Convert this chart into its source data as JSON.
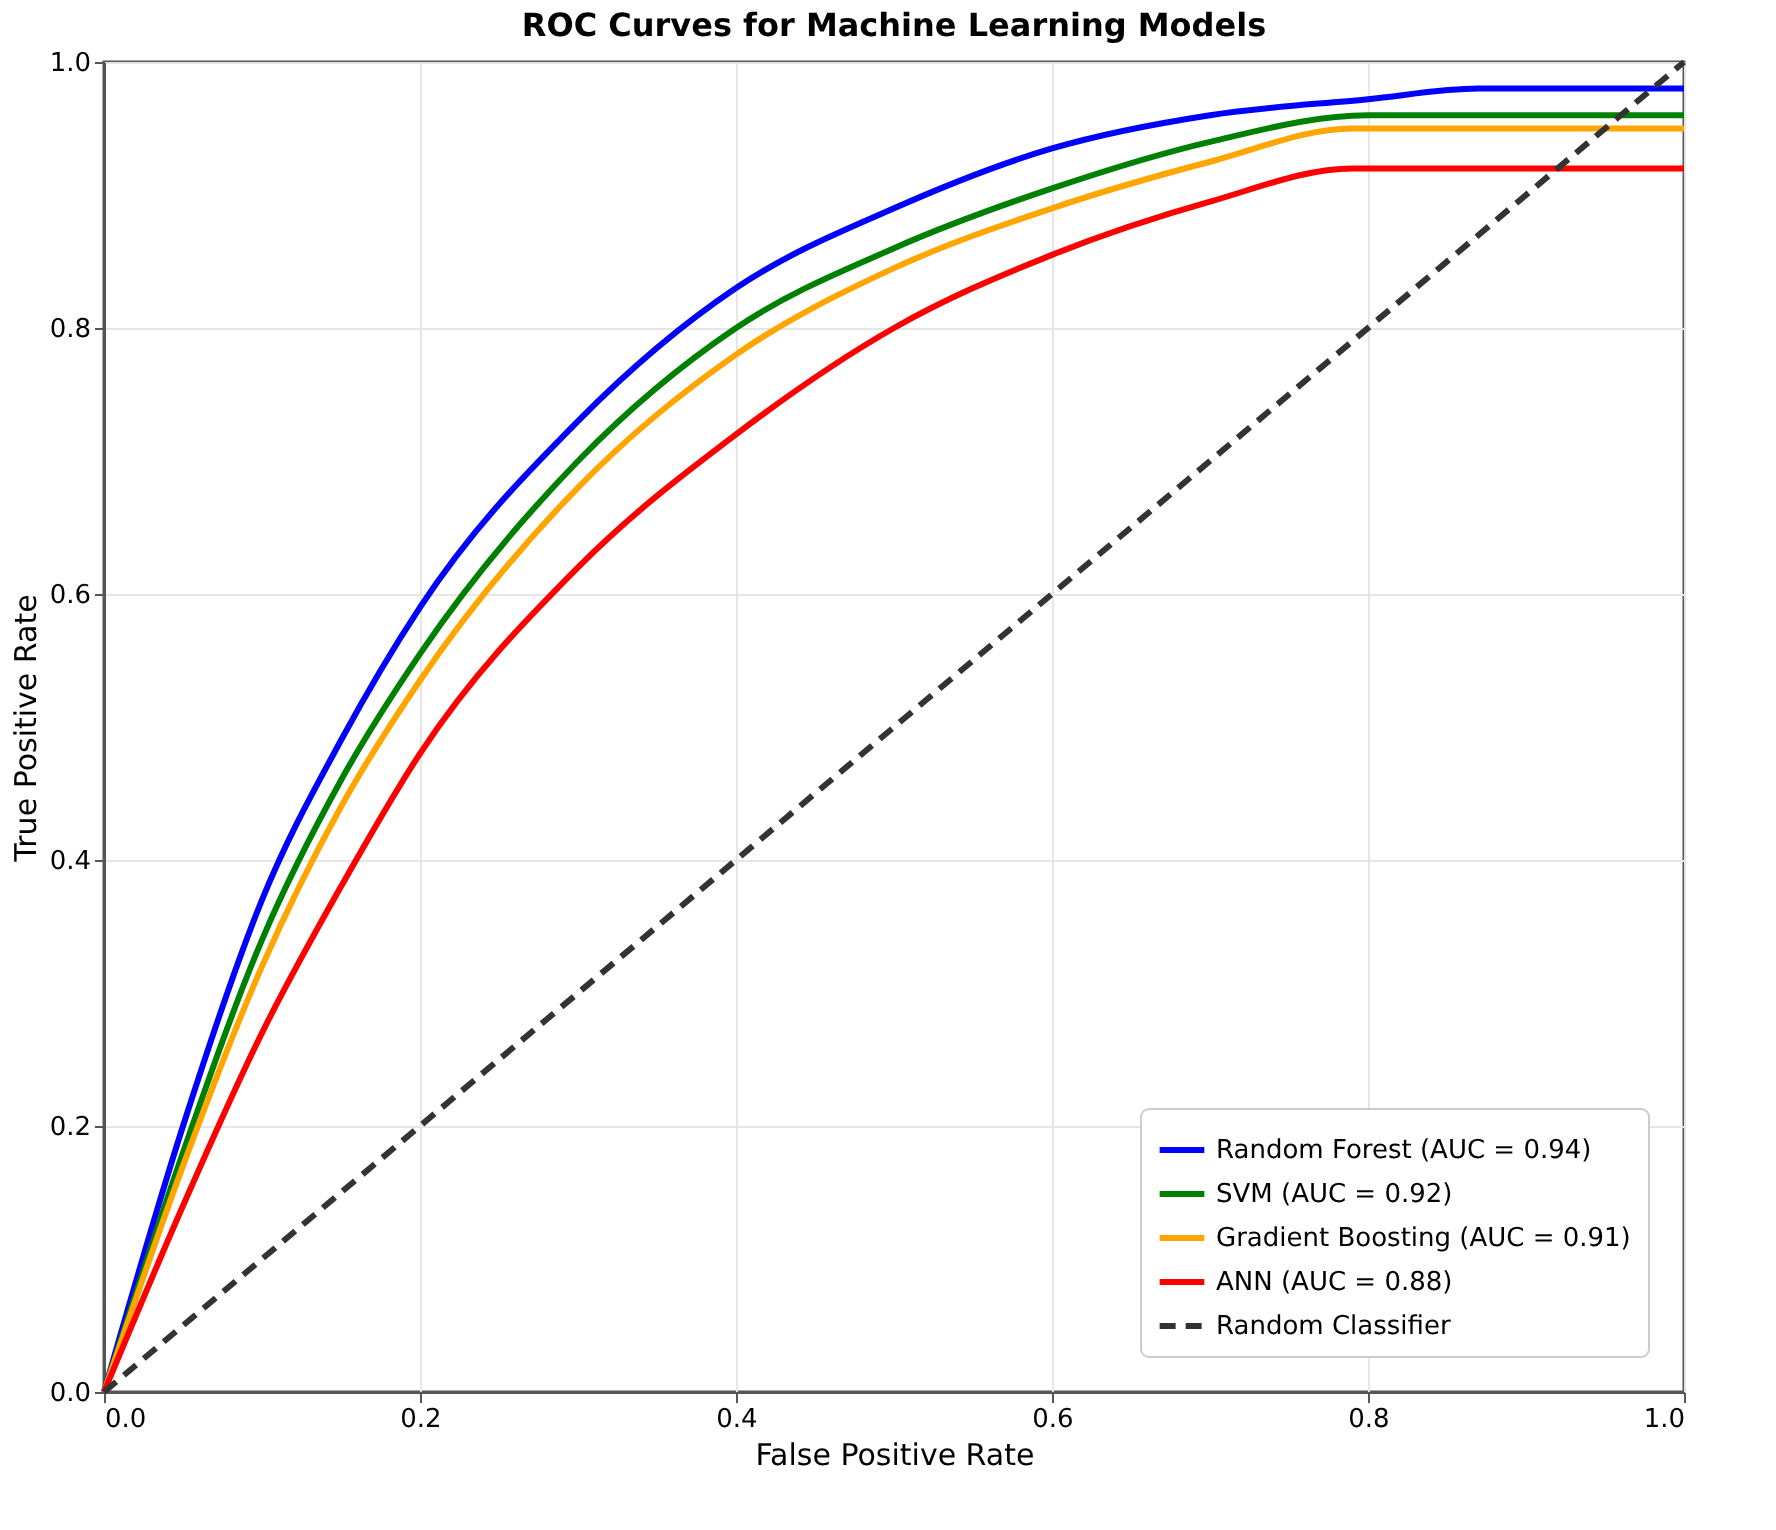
{
  "chart_data": {
    "type": "line",
    "title": "ROC Curves for Machine Learning Models",
    "xlabel": "False Positive Rate",
    "ylabel": "True Positive Rate",
    "xlim": [
      0,
      1
    ],
    "ylim": [
      0,
      1
    ],
    "xticks": [
      {
        "value": 0,
        "label": "0.0"
      },
      {
        "value": 0.2,
        "label": "0.2"
      },
      {
        "value": 0.4,
        "label": "0.4"
      },
      {
        "value": 0.6,
        "label": "0.6"
      },
      {
        "value": 0.8,
        "label": "0.8"
      },
      {
        "value": 1,
        "label": "1.0"
      }
    ],
    "yticks": [
      {
        "value": 0,
        "label": "0.0"
      },
      {
        "value": 0.2,
        "label": "0.2"
      },
      {
        "value": 0.4,
        "label": "0.4"
      },
      {
        "value": 0.6,
        "label": "0.6"
      },
      {
        "value": 0.8,
        "label": "0.8"
      },
      {
        "value": 1,
        "label": "1.0"
      }
    ],
    "grid": true,
    "legend": "bottom right",
    "marker": "none",
    "series": [
      {
        "name": "Random Forest (AUC = 0.94)",
        "color": "#0000ff",
        "line_style": "solid",
        "x": [
          0,
          0.05,
          0.1,
          0.15,
          0.2,
          0.3,
          0.4,
          0.5,
          0.6,
          0.7,
          0.8,
          0.87,
          1
        ],
        "values": [
          0,
          0.2,
          0.37,
          0.49,
          0.59,
          0.73,
          0.83,
          0.89,
          0.935,
          0.96,
          0.972,
          0.98,
          0.98
        ]
      },
      {
        "name": "SVM (AUC = 0.92)",
        "color": "#008000",
        "line_style": "solid",
        "x": [
          0,
          0.05,
          0.1,
          0.15,
          0.2,
          0.3,
          0.4,
          0.5,
          0.6,
          0.7,
          0.8,
          1
        ],
        "values": [
          0,
          0.18,
          0.34,
          0.46,
          0.555,
          0.7,
          0.8,
          0.86,
          0.905,
          0.94,
          0.96,
          0.96
        ]
      },
      {
        "name": "Gradient Boosting (AUC = 0.91)",
        "color": "#ffa500",
        "line_style": "solid",
        "x": [
          0,
          0.05,
          0.1,
          0.15,
          0.2,
          0.3,
          0.4,
          0.5,
          0.6,
          0.7,
          0.79,
          1
        ],
        "values": [
          0,
          0.17,
          0.32,
          0.44,
          0.535,
          0.68,
          0.78,
          0.845,
          0.89,
          0.925,
          0.95,
          0.95
        ]
      },
      {
        "name": "ANN (AUC = 0.88)",
        "color": "#ff0000",
        "line_style": "solid",
        "x": [
          0,
          0.05,
          0.1,
          0.15,
          0.2,
          0.3,
          0.4,
          0.5,
          0.6,
          0.7,
          0.79,
          1
        ],
        "values": [
          0,
          0.14,
          0.27,
          0.38,
          0.48,
          0.62,
          0.72,
          0.8,
          0.855,
          0.895,
          0.92,
          0.92
        ]
      },
      {
        "name": "Random Classifier",
        "color": "#333333",
        "line_style": "dashed",
        "x": [
          0,
          1
        ],
        "values": [
          0,
          1
        ]
      }
    ]
  }
}
